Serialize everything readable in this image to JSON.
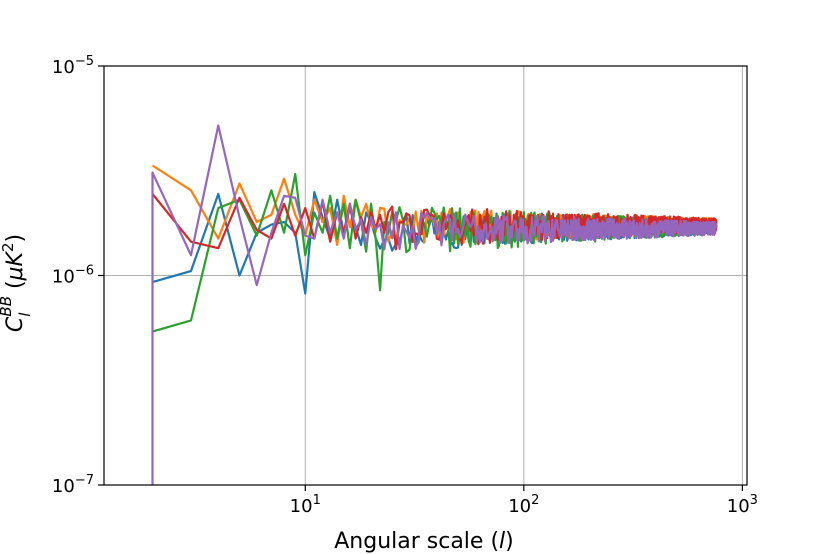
{
  "chart_data": {
    "type": "line",
    "title": "",
    "xlabel": "Angular scale (l)",
    "ylabel": "C_l^BB (μK^2)",
    "xscale": "log",
    "yscale": "log",
    "xlim": [
      1.2,
      1050
    ],
    "ylim": [
      1e-07,
      1e-05
    ],
    "grid": true,
    "x_ticks": [
      {
        "base": "10",
        "exp": "1",
        "value": 10
      },
      {
        "base": "10",
        "exp": "2",
        "value": 100
      },
      {
        "base": "10",
        "exp": "3",
        "value": 1000
      }
    ],
    "y_ticks": [
      {
        "base": "10",
        "exp": "−5",
        "value": 1e-05
      },
      {
        "base": "10",
        "exp": "−6",
        "value": 1e-06
      },
      {
        "base": "10",
        "exp": "−7",
        "value": 1e-07
      }
    ],
    "series": [
      {
        "color": "#1f77b4",
        "x": [
          2,
          3,
          4,
          5,
          6,
          7,
          8,
          9,
          10,
          11,
          12,
          13,
          14,
          15,
          16,
          17,
          18,
          19,
          20
        ],
        "y": [
          9.3e-07,
          1.05e-06,
          2.45e-06,
          1e-06,
          1.6e-06,
          1.75e-06,
          1.8e-06,
          1.6e-06,
          8.2e-07,
          2.5e-06,
          1.9e-06,
          1.5e-06,
          2.3e-06,
          1.6e-06,
          2.1e-06,
          1.7e-06,
          1.4e-06,
          2e-06,
          1.8e-06
        ],
        "noise": {
          "x_start": 20,
          "x_end": 760,
          "center": 1.7e-06,
          "amp_start": 0.18,
          "amp_end": 0.05
        }
      },
      {
        "color": "#ff7f0e",
        "x": [
          2,
          3,
          4,
          5,
          6,
          7,
          8,
          9,
          10,
          11,
          12,
          13,
          14,
          15,
          16,
          17,
          18,
          19,
          20
        ],
        "y": [
          3.35e-06,
          2.55e-06,
          1.5e-06,
          2.75e-06,
          1.8e-06,
          1.95e-06,
          2.9e-06,
          1.95e-06,
          1.55e-06,
          2.3e-06,
          1.8e-06,
          2.1e-06,
          1.4e-06,
          2.4e-06,
          1.7e-06,
          2.3e-06,
          1.9e-06,
          2.2e-06,
          1.75e-06
        ],
        "noise": {
          "x_start": 20,
          "x_end": 760,
          "center": 1.75e-06,
          "amp_start": 0.16,
          "amp_end": 0.05
        }
      },
      {
        "color": "#2ca02c",
        "x": [
          2,
          3,
          4,
          5,
          6,
          7,
          8,
          9,
          10,
          11,
          12,
          13,
          14,
          15,
          16,
          17,
          18,
          19,
          20,
          21,
          22,
          23
        ],
        "y": [
          5.4e-07,
          6.1e-07,
          2.1e-06,
          2.3e-06,
          1.55e-06,
          2.55e-06,
          1.6e-06,
          3.05e-06,
          1.25e-06,
          2e-06,
          1.6e-06,
          2.4e-06,
          1.5e-06,
          2.2e-06,
          1.35e-06,
          2.3e-06,
          1.8e-06,
          1.3e-06,
          2.2e-06,
          1.5e-06,
          8.5e-07,
          1.8e-06
        ],
        "noise": {
          "x_start": 23,
          "x_end": 760,
          "center": 1.7e-06,
          "amp_start": 0.2,
          "amp_end": 0.05
        }
      },
      {
        "color": "#d62728",
        "x": [
          2,
          3,
          4,
          5,
          6,
          7,
          8,
          9,
          10,
          11,
          12,
          13,
          14,
          15,
          16,
          17,
          18,
          19,
          20
        ],
        "y": [
          2.45e-06,
          1.45e-06,
          1.35e-06,
          2.35e-06,
          1.65e-06,
          1.5e-06,
          2.2e-06,
          1.55e-06,
          2.1e-06,
          1.5e-06,
          2.25e-06,
          1.45e-06,
          2e-06,
          1.6e-06,
          2.2e-06,
          1.5e-06,
          1.9e-06,
          1.6e-06,
          2e-06
        ],
        "noise": {
          "x_start": 20,
          "x_end": 760,
          "center": 1.75e-06,
          "amp_start": 0.18,
          "amp_end": 0.05
        }
      },
      {
        "color": "#9467bd",
        "x": [
          2,
          2,
          3,
          4,
          5,
          6,
          7,
          8,
          9,
          10,
          11,
          12,
          13,
          14,
          15,
          16,
          17,
          18,
          19,
          20
        ],
        "y": [
          1e-07,
          3.1e-06,
          1.25e-06,
          5.2e-06,
          1.9e-06,
          9e-07,
          1.6e-06,
          2.4e-06,
          2.35e-06,
          1.55e-06,
          1.5e-06,
          2.3e-06,
          1.6e-06,
          2e-06,
          1.5e-06,
          2.2e-06,
          1.65e-06,
          1.85e-06,
          1.4e-06,
          1.9e-06
        ],
        "noise": {
          "x_start": 20,
          "x_end": 760,
          "center": 1.68e-06,
          "amp_start": 0.16,
          "amp_end": 0.05
        }
      }
    ]
  }
}
